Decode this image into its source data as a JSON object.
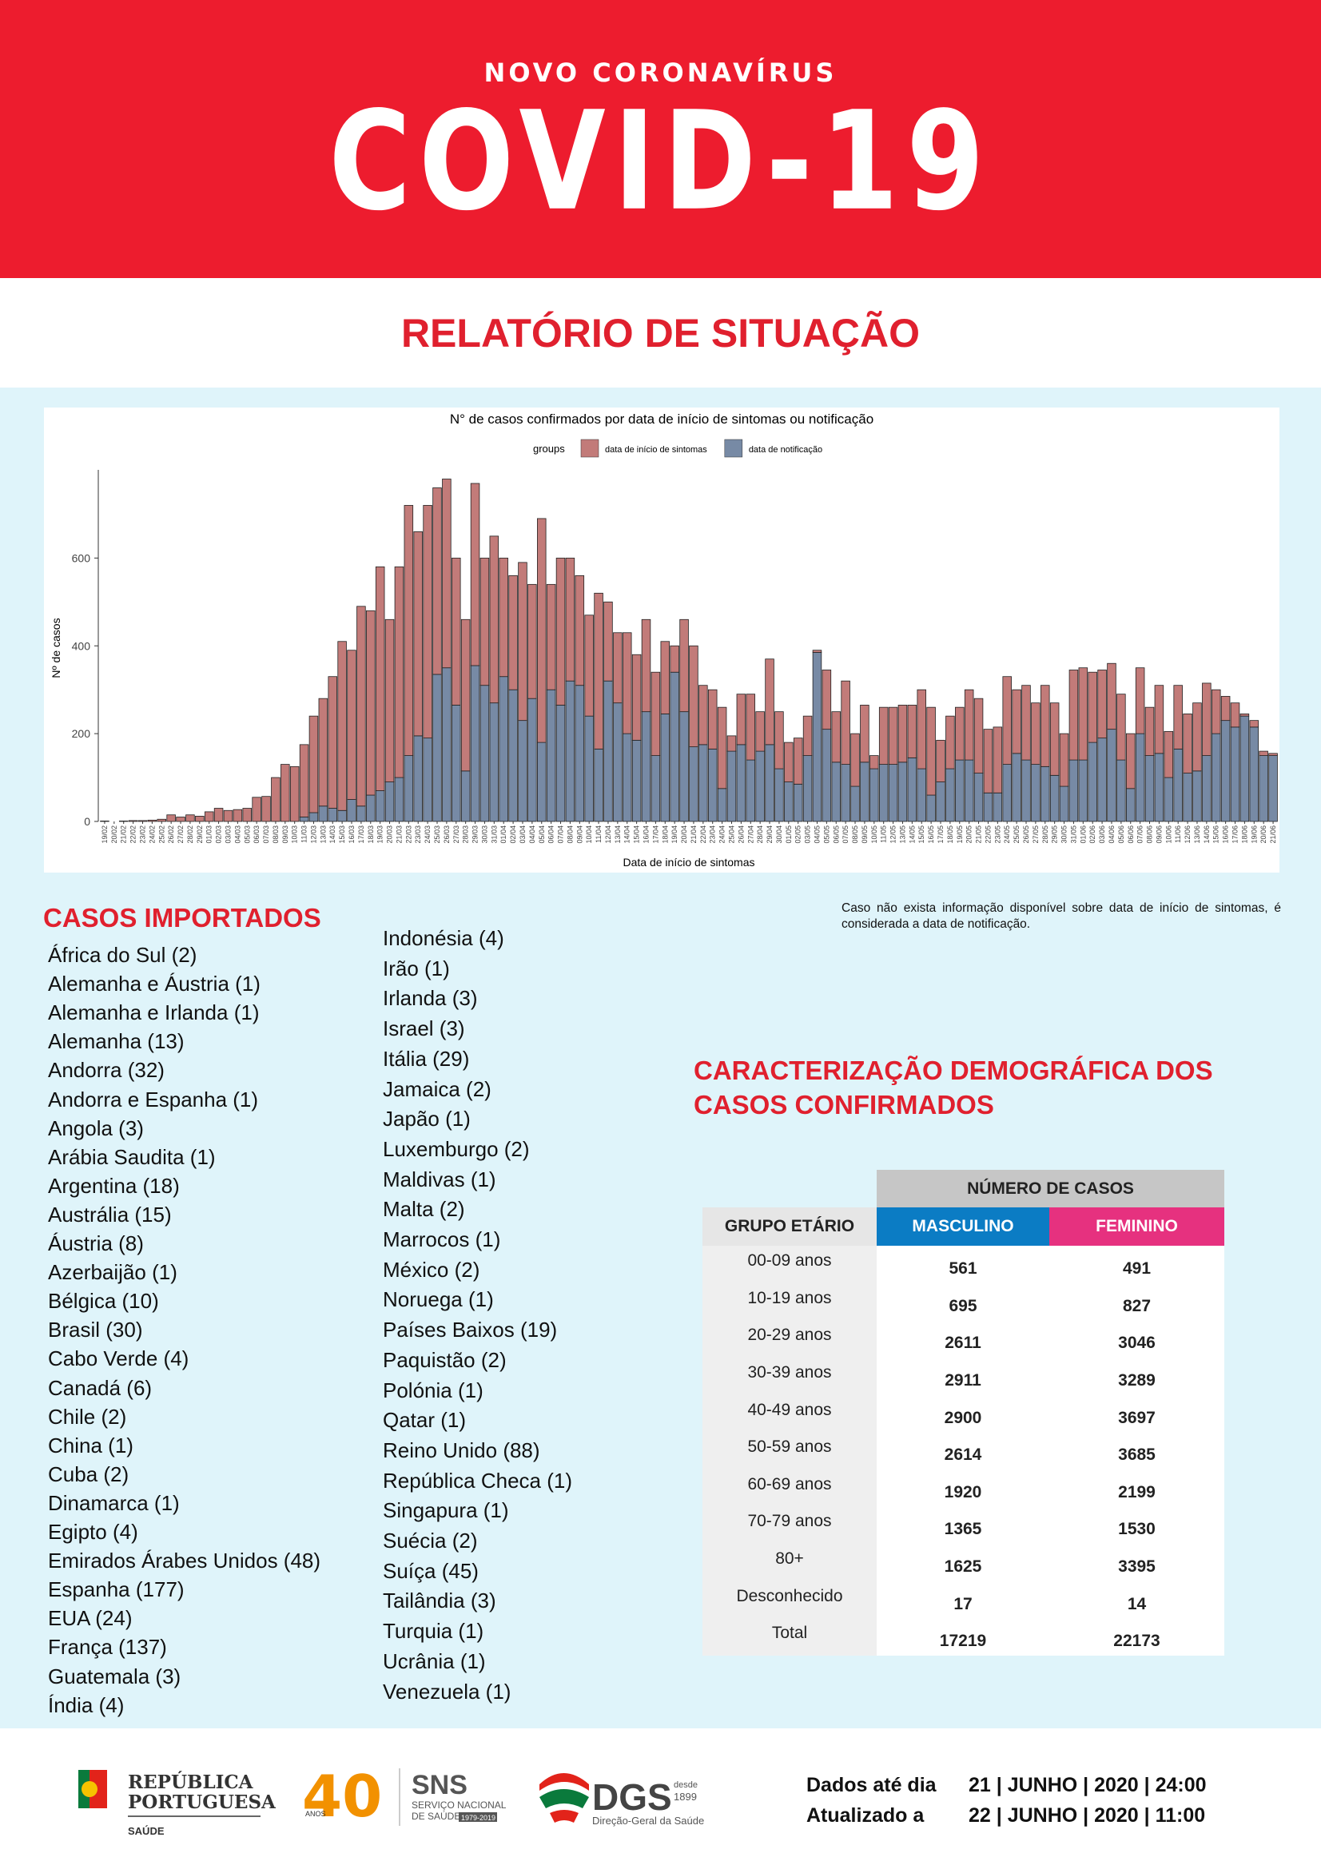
{
  "header": {
    "kicker": "NOVO CORONAVÍRUS",
    "title": "COVID-19",
    "subtitle": "RELATÓRIO DE SITUAÇÃO"
  },
  "chart_data": {
    "type": "bar",
    "stacked": true,
    "title": "N° de casos confirmados por data de início de sintomas ou notificação",
    "legend_title": "groups",
    "x_label": "Data de início de sintomas",
    "y_label": "Nº de casos",
    "ylim": [
      0,
      790
    ],
    "yticks": [
      0,
      200,
      400,
      600
    ],
    "categories": [
      "19/02",
      "20/02",
      "21/02",
      "22/02",
      "23/02",
      "24/02",
      "25/02",
      "26/02",
      "27/02",
      "28/02",
      "29/02",
      "01/03",
      "02/03",
      "03/03",
      "04/03",
      "05/03",
      "06/03",
      "07/03",
      "08/03",
      "09/03",
      "10/03",
      "11/03",
      "12/03",
      "13/03",
      "14/03",
      "15/03",
      "16/03",
      "17/03",
      "18/03",
      "19/03",
      "20/03",
      "21/03",
      "22/03",
      "23/03",
      "24/03",
      "25/03",
      "26/03",
      "27/03",
      "28/03",
      "29/03",
      "30/03",
      "31/03",
      "01/04",
      "02/04",
      "03/04",
      "04/04",
      "05/04",
      "06/04",
      "07/04",
      "08/04",
      "09/04",
      "10/04",
      "11/04",
      "12/04",
      "13/04",
      "14/04",
      "15/04",
      "16/04",
      "17/04",
      "18/04",
      "19/04",
      "20/04",
      "21/04",
      "22/04",
      "23/04",
      "24/04",
      "25/04",
      "26/04",
      "27/04",
      "28/04",
      "29/04",
      "30/04",
      "01/05",
      "02/05",
      "03/05",
      "04/05",
      "05/05",
      "06/05",
      "07/05",
      "08/05",
      "09/05",
      "10/05",
      "11/05",
      "12/05",
      "13/05",
      "14/05",
      "15/05",
      "16/05",
      "17/05",
      "18/05",
      "19/05",
      "20/05",
      "21/05",
      "22/05",
      "23/05",
      "24/05",
      "25/05",
      "26/05",
      "27/05",
      "28/05",
      "29/05",
      "30/05",
      "31/05",
      "01/06",
      "02/06",
      "03/06",
      "04/06",
      "05/06",
      "06/06",
      "07/06",
      "08/06",
      "09/06",
      "10/06",
      "11/06",
      "12/06",
      "13/06",
      "14/06",
      "15/06",
      "16/06",
      "17/06",
      "18/06",
      "19/06",
      "20/06",
      "21/06"
    ],
    "series": [
      {
        "name": "data de início de sintomas",
        "color": "#c27b79",
        "values": [
          1,
          0,
          1,
          2,
          2,
          3,
          5,
          15,
          10,
          15,
          12,
          22,
          30,
          25,
          27,
          30,
          55,
          57,
          100,
          130,
          125,
          165,
          220,
          245,
          300,
          385,
          340,
          455,
          420,
          510,
          370,
          480,
          570,
          465,
          530,
          425,
          430,
          335,
          345,
          415,
          290,
          380,
          270,
          260,
          360,
          260,
          510,
          240,
          335,
          280,
          250,
          230,
          355,
          180,
          160,
          230,
          195,
          210,
          190,
          165,
          60,
          210,
          230,
          135,
          135,
          185,
          35,
          115,
          150,
          90,
          195,
          130,
          90,
          105,
          90,
          5,
          135,
          115,
          190,
          120,
          130,
          30,
          130,
          130,
          130,
          120,
          180,
          200,
          95,
          120,
          120,
          160,
          170,
          145,
          150,
          200,
          145,
          170,
          140,
          185,
          165,
          120,
          205,
          210,
          160,
          155,
          150,
          150,
          125,
          150,
          110,
          155,
          105,
          145,
          135,
          155,
          165,
          100,
          55,
          55,
          5,
          15,
          10,
          5
        ]
      },
      {
        "name": "data de notificação",
        "color": "#778aa5",
        "values": [
          0,
          0,
          0,
          0,
          0,
          0,
          0,
          0,
          0,
          0,
          0,
          0,
          0,
          0,
          0,
          0,
          0,
          0,
          0,
          0,
          0,
          10,
          20,
          35,
          30,
          25,
          50,
          35,
          60,
          70,
          90,
          100,
          150,
          195,
          190,
          335,
          350,
          265,
          115,
          355,
          310,
          270,
          330,
          300,
          230,
          280,
          180,
          300,
          265,
          320,
          310,
          240,
          165,
          320,
          270,
          200,
          185,
          250,
          150,
          245,
          340,
          250,
          170,
          175,
          165,
          75,
          160,
          175,
          140,
          160,
          175,
          120,
          90,
          85,
          150,
          385,
          210,
          135,
          130,
          80,
          135,
          120,
          130,
          130,
          135,
          145,
          120,
          60,
          90,
          120,
          140,
          140,
          110,
          65,
          65,
          130,
          155,
          140,
          130,
          125,
          105,
          80,
          140,
          140,
          180,
          190,
          210,
          140,
          75,
          200,
          150,
          155,
          100,
          165,
          110,
          115,
          150,
          200,
          230,
          215,
          240,
          215,
          150,
          150
        ]
      }
    ]
  },
  "casos_importados": {
    "title": "CASOS IMPORTADOS",
    "columns": [
      [
        "África do Sul (2)",
        "Alemanha e Áustria (1)",
        "Alemanha e Irlanda (1)",
        "Alemanha (13)",
        "Andorra (32)",
        "Andorra e Espanha (1)",
        "Angola (3)",
        "Arábia Saudita (1)",
        "Argentina (18)",
        "Austrália (15)",
        "Áustria (8)",
        "Azerbaijão (1)",
        "Bélgica (10)",
        "Brasil (30)",
        "Cabo Verde (4)",
        "Canadá (6)",
        "Chile (2)",
        "China (1)",
        "Cuba (2)",
        "Dinamarca (1)",
        "Egipto (4)",
        "Emirados Árabes Unidos (48)",
        "Espanha (177)",
        "EUA (24)",
        "França (137)",
        "Guatemala (3)",
        "Índia (4)"
      ],
      [
        "Indonésia (4)",
        "Irão (1)",
        "Irlanda (3)",
        "Israel (3)",
        "Itália (29)",
        "Jamaica (2)",
        "Japão (1)",
        "Luxemburgo (2)",
        "Maldivas (1)",
        "Malta (2)",
        "Marrocos (1)",
        "México (2)",
        "Noruega (1)",
        "Países Baixos (19)",
        "Paquistão (2)",
        "Polónia (1)",
        "Qatar (1)",
        "Reino Unido (88)",
        "República Checa (1)",
        "Singapura (1)",
        "Suécia (2)",
        "Suíça (45)",
        "Tailândia (3)",
        "Turquia (1)",
        "Ucrânia (1)",
        "Venezuela (1)"
      ]
    ]
  },
  "note": "Caso não exista informação disponível sobre data de início de sintomas, é considerada a data de notificação.",
  "demografia": {
    "title": "CARACTERIZAÇÃO DEMOGRÁFICA DOS CASOS CONFIRMADOS",
    "table": {
      "group_header": "NÚMERO DE CASOS",
      "columns": [
        "GRUPO ETÁRIO",
        "MASCULINO",
        "FEMININO"
      ],
      "rows": [
        [
          "00-09 anos",
          561,
          491
        ],
        [
          "10-19 anos",
          695,
          827
        ],
        [
          "20-29 anos",
          2611,
          3046
        ],
        [
          "30-39 anos",
          2911,
          3289
        ],
        [
          "40-49 anos",
          2900,
          3697
        ],
        [
          "50-59 anos",
          2614,
          3685
        ],
        [
          "60-69 anos",
          1920,
          2199
        ],
        [
          "70-79 anos",
          1365,
          1530
        ],
        [
          "80+",
          1625,
          3395
        ],
        [
          "Desconhecido",
          17,
          14
        ],
        [
          "Total",
          17219,
          22173
        ]
      ]
    }
  },
  "footer": {
    "logos": {
      "republica": [
        "REPÚBLICA",
        "PORTUGUESA"
      ],
      "saude": "SAÚDE",
      "anos_num": "40",
      "anos": "ANOS",
      "sns": "SNS",
      "sns_name": [
        "SERVIÇO NACIONAL",
        "DE SAÚDE"
      ],
      "sns_years": "1979-2019",
      "dgs": "DGS",
      "dgs_since": [
        "desde",
        "1899"
      ],
      "dgs_name": "Direção-Geral da Saúde"
    },
    "dates": [
      {
        "label": "Dados até dia",
        "value": "21 | JUNHO | 2020 | 24:00"
      },
      {
        "label": "Atualizado a",
        "value": "22 | JUNHO | 2020 | 11:00"
      }
    ]
  }
}
